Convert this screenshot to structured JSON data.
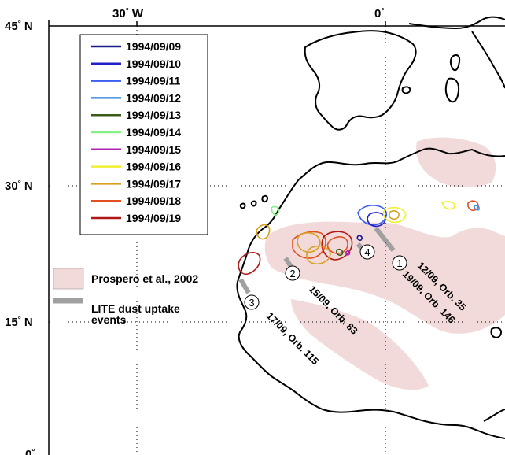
{
  "axes": {
    "x_ticks": [
      {
        "label": "30",
        "deg": "°",
        "hem": " W"
      },
      {
        "label": "0",
        "deg": "°",
        "hem": ""
      }
    ],
    "y_ticks": [
      {
        "label": "45",
        "deg": "°",
        "hem": " N"
      },
      {
        "label": "30",
        "deg": "°",
        "hem": " N"
      },
      {
        "label": "15",
        "deg": "°",
        "hem": " N"
      },
      {
        "label": "0",
        "deg": "°",
        "hem": ""
      }
    ],
    "grid": "dotted"
  },
  "legend": {
    "dates": [
      {
        "label": "1994/09/09",
        "color": "#1a1a8c"
      },
      {
        "label": "1994/09/10",
        "color": "#2020c8"
      },
      {
        "label": "1994/09/11",
        "color": "#3a5ef0"
      },
      {
        "label": "1994/09/12",
        "color": "#4a90e0"
      },
      {
        "label": "1994/09/13",
        "color": "#3a5a18"
      },
      {
        "label": "1994/09/14",
        "color": "#88f088"
      },
      {
        "label": "1994/09/15",
        "color": "#b020b0"
      },
      {
        "label": "1994/09/16",
        "color": "#f0f030"
      },
      {
        "label": "1994/09/17",
        "color": "#d8a020"
      },
      {
        "label": "1994/09/18",
        "color": "#e05020"
      },
      {
        "label": "1994/09/19",
        "color": "#b01818"
      }
    ],
    "prospero": {
      "label": "Prospero et al., 2002",
      "color": "#f2dada"
    },
    "lite": {
      "label_line1": "LITE dust uptake",
      "label_line2": "events",
      "color": "#a0a0a0"
    }
  },
  "events": [
    {
      "number": "1",
      "label": "12/09, Orb. 35"
    },
    {
      "number": "",
      "label": "19/09, Orb. 146"
    },
    {
      "number": "2",
      "label": "15/09, Orb. 83"
    },
    {
      "number": "3",
      "label": "17/09, Orb. 115"
    },
    {
      "number": "4",
      "label": ""
    }
  ]
}
